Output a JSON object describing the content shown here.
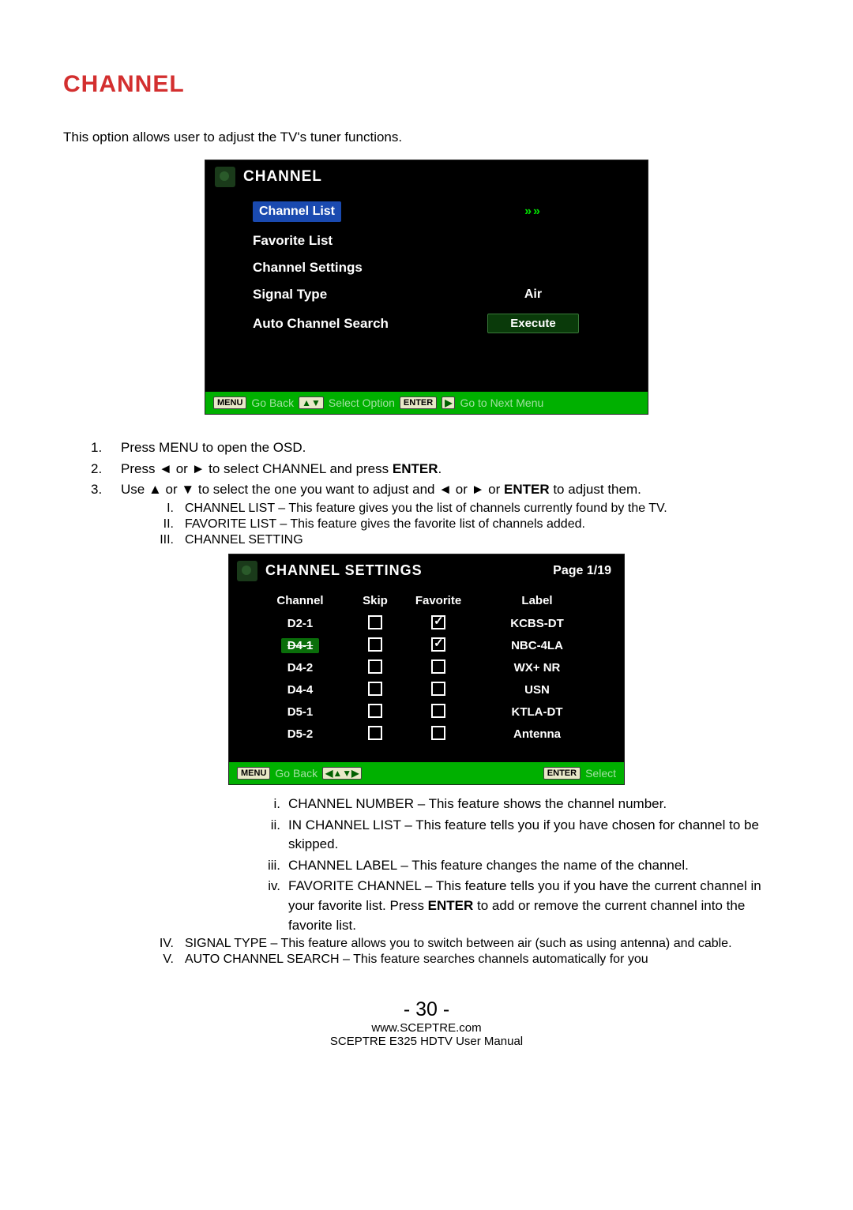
{
  "title": "CHANNEL",
  "intro": "This option allows user to adjust the TV's tuner functions.",
  "tv1": {
    "header": "CHANNEL",
    "selected_label": "Channel List",
    "selected_right": "»»",
    "rows": [
      {
        "label": "Favorite List",
        "value": ""
      },
      {
        "label": "Channel Settings",
        "value": ""
      },
      {
        "label": "Signal Type",
        "value": "Air"
      }
    ],
    "auto_label": "Auto Channel Search",
    "execute": "Execute",
    "footer": {
      "menu_key": "MENU",
      "go_back": "Go Back",
      "select": "Select Option",
      "enter_key": "ENTER",
      "goto": "Go to Next Menu"
    }
  },
  "steps": {
    "s1": "Press MENU to open the OSD.",
    "s2_pre": "Press ◄ or ► to select CHANNEL and press ",
    "s2_bold": "ENTER",
    "s2_post": ".",
    "s3_pre": "Use ▲ or ▼ to select the one you want to adjust and ◄ or ► or ",
    "s3_bold": "ENTER",
    "s3_post": " to adjust them."
  },
  "roman": {
    "i": "CHANNEL LIST – This feature gives you the list of channels currently found by the TV.",
    "ii": "FAVORITE LIST – This feature gives the favorite list of channels added.",
    "iii": "CHANNEL SETTING"
  },
  "tv2": {
    "header": "CHANNEL SETTINGS",
    "page": "Page 1/19",
    "cols": {
      "ch": "Channel",
      "skip": "Skip",
      "fav": "Favorite",
      "label": "Label"
    },
    "rows": [
      {
        "ch": "D2-1",
        "skip": false,
        "fav": true,
        "label": "KCBS-DT",
        "hl": false
      },
      {
        "ch": "D4-1",
        "skip": false,
        "fav": true,
        "label": "NBC-4LA",
        "hl": true
      },
      {
        "ch": "D4-2",
        "skip": false,
        "fav": false,
        "label": "WX+ NR",
        "hl": false
      },
      {
        "ch": "D4-4",
        "skip": false,
        "fav": false,
        "label": "USN",
        "hl": false
      },
      {
        "ch": "D5-1",
        "skip": false,
        "fav": false,
        "label": "KTLA-DT",
        "hl": false
      },
      {
        "ch": "D5-2",
        "skip": false,
        "fav": false,
        "label": "Antenna",
        "hl": false
      }
    ],
    "footer": {
      "menu_key": "MENU",
      "go_back": "Go Back",
      "enter_key": "ENTER",
      "select": "Select"
    }
  },
  "subroman": {
    "i": "CHANNEL NUMBER – This feature shows the channel number.",
    "ii": "IN CHANNEL LIST – This feature tells you if you have chosen for channel to be skipped.",
    "iii": "CHANNEL LABEL – This feature changes the name of the channel.",
    "iv_pre": "FAVORITE CHANNEL – This feature tells you if you have the current channel in your favorite list. Press ",
    "iv_bold": "ENTER",
    "iv_post": " to add or remove the current channel into the favorite list."
  },
  "roman2": {
    "iv": "SIGNAL TYPE – This feature allows you to switch between air (such as using antenna) and cable.",
    "v": "AUTO CHANNEL SEARCH – This feature searches channels automatically for you"
  },
  "page_number": "- 30 -",
  "site": "www.SCEPTRE.com",
  "manual": "SCEPTRE E325 HDTV User Manual"
}
